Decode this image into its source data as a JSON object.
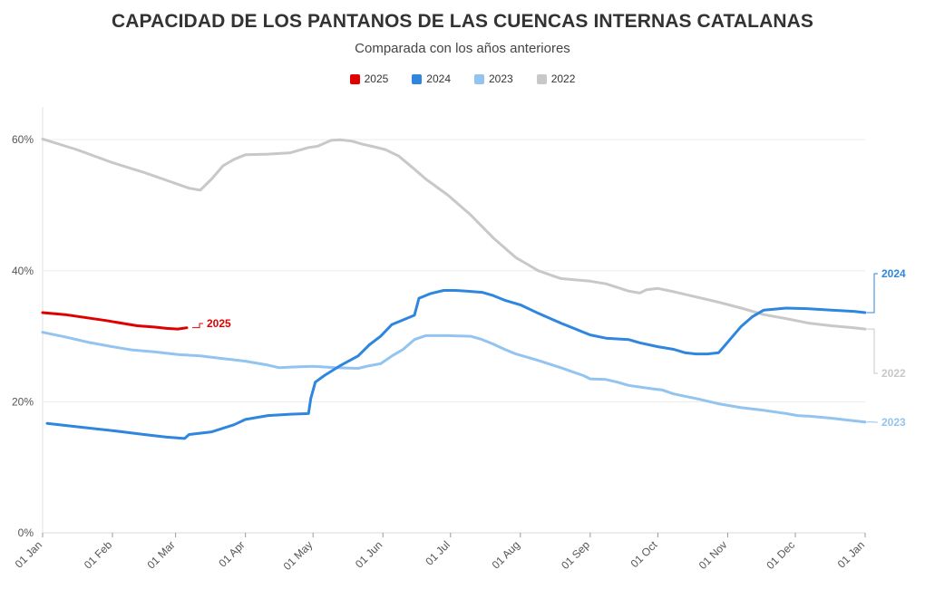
{
  "chart_data": {
    "type": "line",
    "title": "CAPACIDAD DE LOS PANTANOS DE LAS CUENCAS INTERNAS CATALANAS",
    "subtitle": "Comparada con los años anteriores",
    "xlabel": "",
    "ylabel": "",
    "ylim": [
      0,
      65
    ],
    "y_ticks": [
      0,
      20,
      40,
      60
    ],
    "y_tick_labels": [
      "0%",
      "20%",
      "40%",
      "60%"
    ],
    "x_ticks": [
      0,
      31,
      59,
      90,
      120,
      151,
      181,
      212,
      243,
      273,
      304,
      334,
      365
    ],
    "x_tick_labels": [
      "01 Jan",
      "01 Feb",
      "01 Mar",
      "01 Apr",
      "01 May",
      "01 Jun",
      "01 Jul",
      "01 Aug",
      "01 Sep",
      "01 Oct",
      "01 Nov",
      "01 Dec",
      "01 Jan"
    ],
    "grid": true,
    "legend_position": "top",
    "series": [
      {
        "name": "2025",
        "color": "#e00000",
        "end_label": "2025",
        "x": [
          0,
          10,
          20,
          28,
          35,
          42,
          50,
          55,
          60,
          64
        ],
        "y": [
          33.6,
          33.3,
          32.8,
          32.4,
          32.0,
          31.6,
          31.4,
          31.2,
          31.1,
          31.3
        ]
      },
      {
        "name": "2024",
        "color": "#2e86de",
        "end_label": "2024",
        "x": [
          2,
          15,
          31,
          45,
          55,
          63,
          65,
          75,
          85,
          90,
          100,
          110,
          118,
          119,
          121,
          125,
          132,
          140,
          145,
          150,
          155,
          165,
          167,
          172,
          178,
          183,
          188,
          195,
          200,
          205,
          212,
          220,
          230,
          243,
          250,
          260,
          265,
          273,
          280,
          285,
          290,
          295,
          300,
          305,
          310,
          315,
          320,
          330,
          340,
          350,
          360,
          365
        ],
        "y": [
          16.7,
          16.2,
          15.6,
          15.0,
          14.6,
          14.4,
          15.0,
          15.4,
          16.5,
          17.3,
          17.9,
          18.1,
          18.2,
          20.5,
          23.0,
          24.0,
          25.5,
          27.0,
          28.7,
          30.0,
          31.8,
          33.2,
          35.8,
          36.5,
          37.0,
          37.0,
          36.9,
          36.7,
          36.2,
          35.5,
          34.8,
          33.5,
          32.0,
          30.2,
          29.7,
          29.5,
          29.0,
          28.4,
          28.0,
          27.5,
          27.3,
          27.3,
          27.5,
          29.5,
          31.5,
          33.0,
          34.0,
          34.3,
          34.2,
          34.0,
          33.8,
          33.6
        ]
      },
      {
        "name": "2023",
        "color": "#93c4f0",
        "end_label": "2023",
        "x": [
          0,
          10,
          20,
          31,
          40,
          50,
          60,
          70,
          80,
          90,
          100,
          105,
          110,
          120,
          130,
          140,
          145,
          150,
          155,
          160,
          165,
          170,
          180,
          190,
          195,
          200,
          205,
          210,
          215,
          220,
          230,
          240,
          243,
          250,
          255,
          260,
          270,
          275,
          280,
          290,
          300,
          310,
          320,
          330,
          335,
          340,
          350,
          360,
          365
        ],
        "y": [
          30.6,
          29.9,
          29.1,
          28.4,
          27.9,
          27.6,
          27.2,
          27.0,
          26.6,
          26.2,
          25.6,
          25.2,
          25.3,
          25.4,
          25.2,
          25.1,
          25.5,
          25.8,
          27.0,
          28.0,
          29.5,
          30.1,
          30.1,
          30.0,
          29.5,
          28.8,
          28.0,
          27.3,
          26.8,
          26.3,
          25.2,
          24.0,
          23.5,
          23.4,
          23.0,
          22.5,
          22.0,
          21.8,
          21.2,
          20.5,
          19.7,
          19.1,
          18.7,
          18.2,
          17.9,
          17.8,
          17.5,
          17.1,
          16.9
        ]
      },
      {
        "name": "2022",
        "color": "#c8c8c8",
        "end_label": "2022",
        "x": [
          0,
          15,
          31,
          45,
          55,
          65,
          70,
          75,
          80,
          85,
          90,
          100,
          110,
          118,
          122,
          128,
          132,
          137,
          142,
          146,
          152,
          158,
          165,
          170,
          180,
          190,
          200,
          210,
          215,
          220,
          230,
          240,
          243,
          250,
          260,
          265,
          268,
          273,
          280,
          290,
          300,
          310,
          320,
          330,
          340,
          350,
          360,
          365
        ],
        "y": [
          60.1,
          58.5,
          56.5,
          55.0,
          53.8,
          52.6,
          52.3,
          54.0,
          56.0,
          57.0,
          57.7,
          57.8,
          58.0,
          58.8,
          59.0,
          59.9,
          60.0,
          59.8,
          59.3,
          59.0,
          58.5,
          57.5,
          55.5,
          54.0,
          51.5,
          48.5,
          45.0,
          42.0,
          41.0,
          40.0,
          38.8,
          38.5,
          38.4,
          38.0,
          36.9,
          36.6,
          37.1,
          37.3,
          36.8,
          36.0,
          35.2,
          34.3,
          33.3,
          32.7,
          32.0,
          31.6,
          31.3,
          31.1
        ]
      }
    ]
  }
}
